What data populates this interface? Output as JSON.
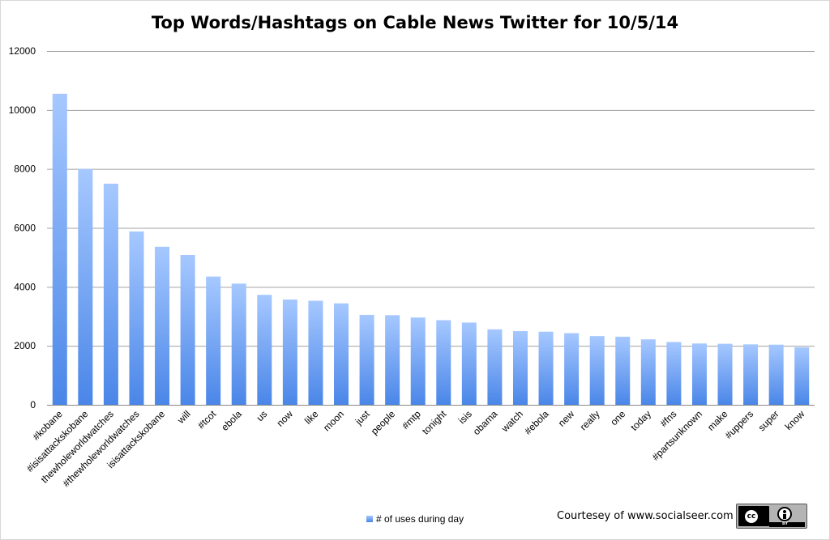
{
  "chart_data": {
    "type": "bar",
    "title": "Top Words/Hashtags on Cable News Twitter for 10/5/14",
    "xlabel": "",
    "ylabel": "",
    "ylim": [
      0,
      12000
    ],
    "yticks": [
      0,
      2000,
      4000,
      6000,
      8000,
      10000,
      12000
    ],
    "grid": true,
    "legend_position": "bottom",
    "categories": [
      "#kobane",
      "#isisattackskobane",
      "thewholeworldwatches",
      "#thewholeworldwatches",
      "isisattackskobane",
      "will",
      "#tcot",
      "ebola",
      "us",
      "now",
      "like",
      "moon",
      "just",
      "people",
      "#mtp",
      "tonight",
      "isis",
      "obama",
      "watch",
      "#ebola",
      "new",
      "really",
      "one",
      "today",
      "#fns",
      "#partsunknown",
      "make",
      "#uppers",
      "super",
      "know"
    ],
    "series": [
      {
        "name": "# of uses during day",
        "values": [
          10550,
          8000,
          7500,
          5880,
          5360,
          5080,
          4350,
          4110,
          3730,
          3570,
          3530,
          3440,
          3050,
          3040,
          2960,
          2870,
          2790,
          2560,
          2500,
          2480,
          2430,
          2330,
          2310,
          2220,
          2130,
          2080,
          2070,
          2050,
          2040,
          1950
        ]
      }
    ],
    "colors": {
      "bar_top": "#a6c8ff",
      "bar_bottom": "#4a86e8",
      "grid": "#a0a0a0"
    }
  },
  "legend": {
    "label": "# of uses during day"
  },
  "credit": {
    "text": "Courtesey of www.socialseer.com"
  },
  "license_badge": {
    "cc": "cc",
    "by": "BY"
  }
}
